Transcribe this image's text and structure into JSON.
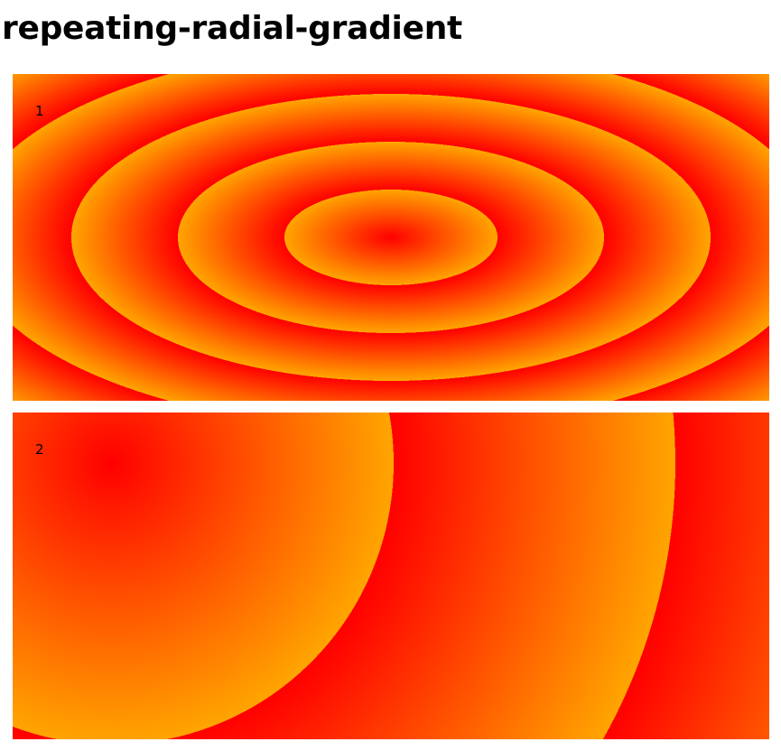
{
  "page": {
    "title": "repeating-radial-gradient"
  },
  "boxes": [
    {
      "label": "1",
      "gradient": "repeating-radial-gradient",
      "shape": "ellipse",
      "colors": [
        "#ff0000",
        "#ffa500"
      ]
    },
    {
      "label": "2",
      "gradient": "repeating-radial-gradient",
      "shape": "circle",
      "colors": [
        "#ff0000",
        "#ffa500"
      ]
    }
  ]
}
